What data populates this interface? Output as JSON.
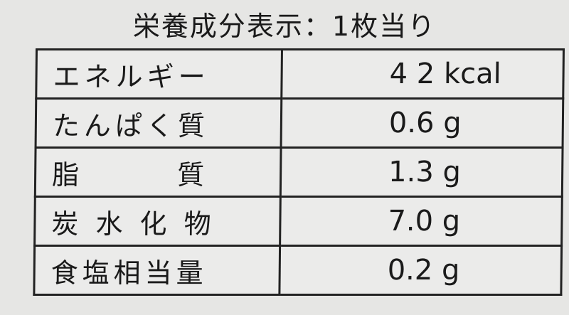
{
  "title": "栄養成分表示：1枚当り",
  "rows": [
    {
      "label": "エネルギー",
      "value": "4 2 kcal"
    },
    {
      "label": "たんぱく質",
      "value": "0.6 g"
    },
    {
      "label": "脂　　　質",
      "value": "1.3 g"
    },
    {
      "label": "炭 水 化 物",
      "value": "7.0 g"
    },
    {
      "label": "食塩相当量",
      "value": "0.2 g"
    }
  ]
}
